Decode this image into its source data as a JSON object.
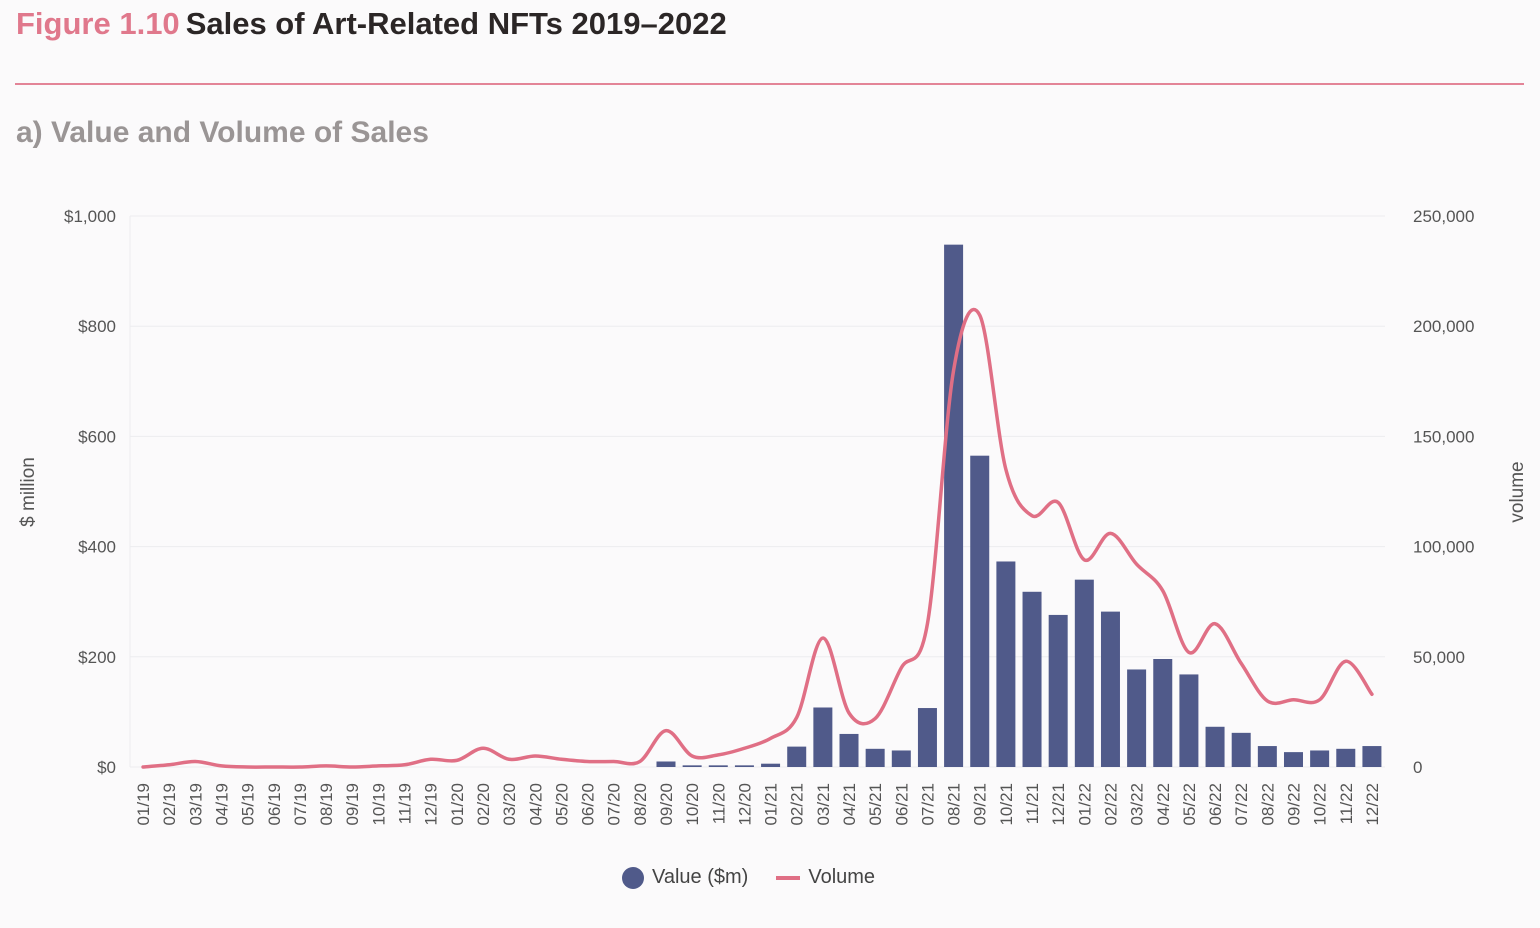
{
  "header": {
    "figure_number": "Figure 1.10",
    "title": "Sales of Art-Related NFTs 2019–2022",
    "subtitle": "a) Value and Volume of Sales"
  },
  "colors": {
    "bars": "#505a8a",
    "line": "#e06f85",
    "accent": "#e0788c"
  },
  "chart_data": {
    "type": "bar",
    "categories": [
      "01/19",
      "02/19",
      "03/19",
      "04/19",
      "05/19",
      "06/19",
      "07/19",
      "08/19",
      "09/19",
      "10/19",
      "11/19",
      "12/19",
      "01/20",
      "02/20",
      "03/20",
      "04/20",
      "05/20",
      "06/20",
      "07/20",
      "08/20",
      "09/20",
      "10/20",
      "11/20",
      "12/20",
      "01/21",
      "02/21",
      "03/21",
      "04/21",
      "05/21",
      "06/21",
      "07/21",
      "08/21",
      "09/21",
      "10/21",
      "11/21",
      "12/21",
      "01/22",
      "02/22",
      "03/22",
      "04/22",
      "05/22",
      "06/22",
      "07/22",
      "08/22",
      "09/22",
      "10/22",
      "11/22",
      "12/22"
    ],
    "series": [
      {
        "name": "Value ($m)",
        "type": "bar",
        "axis": "left",
        "values": [
          0,
          0,
          0,
          0,
          0,
          0,
          0,
          0,
          0,
          0,
          0,
          0,
          0,
          0,
          0,
          0,
          0,
          0,
          0,
          0,
          10,
          3,
          3,
          3,
          6,
          37,
          108,
          60,
          33,
          30,
          107,
          948,
          565,
          373,
          318,
          276,
          340,
          282,
          177,
          196,
          168,
          73,
          62,
          38,
          27,
          30,
          33,
          38
        ]
      },
      {
        "name": "Volume",
        "type": "line",
        "axis": "right",
        "values": [
          0,
          1000,
          2500,
          500,
          0,
          0,
          0,
          500,
          0,
          500,
          1000,
          3500,
          3000,
          8500,
          3500,
          5000,
          3500,
          2500,
          2500,
          2500,
          16500,
          5000,
          5500,
          8500,
          13000,
          22500,
          58500,
          24500,
          22000,
          45000,
          65000,
          180000,
          205000,
          135000,
          114000,
          120000,
          94000,
          106000,
          92000,
          80000,
          52000,
          65000,
          47000,
          30000,
          30500,
          30500,
          48000,
          33000
        ]
      }
    ],
    "y_left": {
      "label": "$ million",
      "ylim": [
        0,
        1000
      ],
      "ticks": [
        "$0",
        "$200",
        "$400",
        "$600",
        "$800",
        "$1,000"
      ]
    },
    "y_right": {
      "label": "volume",
      "ylim": [
        0,
        250000
      ],
      "ticks": [
        "0",
        "50,000",
        "100,000",
        "150,000",
        "200,000",
        "250,000"
      ]
    },
    "grid": true,
    "legend": {
      "position": "bottom-center",
      "items": [
        "Value ($m)",
        "Volume"
      ]
    }
  }
}
